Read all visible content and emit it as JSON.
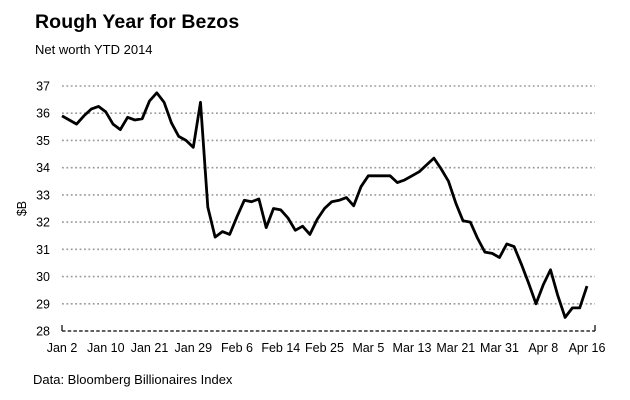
{
  "header": {
    "title": "Rough Year for Bezos",
    "subtitle": "Net worth YTD 2014"
  },
  "footer": {
    "source": "Data: Bloomberg Billionaires Index"
  },
  "chart_data": {
    "type": "line",
    "title": "Rough Year for Bezos",
    "subtitle": "Net worth YTD 2014",
    "ylabel": "$B",
    "xlabel": "",
    "source": "Data: Bloomberg Billionaires Index",
    "ylim": [
      28,
      37
    ],
    "yticks": [
      28,
      29,
      30,
      31,
      32,
      33,
      34,
      35,
      36,
      37
    ],
    "x_tick_labels": [
      "Jan 2",
      "Jan 10",
      "Jan 21",
      "Jan 29",
      "Feb 6",
      "Feb 14",
      "Feb 25",
      "Mar 5",
      "Mar 13",
      "Mar 21",
      "Mar 31",
      "Apr 8",
      "Apr 16"
    ],
    "x_tick_point_indices": [
      0,
      6,
      12,
      18,
      24,
      30,
      36,
      42,
      48,
      54,
      60,
      66,
      72
    ],
    "grid": "horizontal-dotted",
    "legend_position": "none",
    "line_color": "#000000",
    "grid_color": "#9b9b9b",
    "axis_color": "#000000",
    "series": [
      {
        "name": "Net worth ($B)",
        "values": [
          35.9,
          35.75,
          35.6,
          35.9,
          36.15,
          36.25,
          36.05,
          35.6,
          35.4,
          35.85,
          35.75,
          35.8,
          36.45,
          36.75,
          36.4,
          35.65,
          35.15,
          35.0,
          34.75,
          36.4,
          32.55,
          31.45,
          31.65,
          31.55,
          32.2,
          32.8,
          32.75,
          32.85,
          31.8,
          32.5,
          32.45,
          32.15,
          31.7,
          31.85,
          31.55,
          32.1,
          32.5,
          32.75,
          32.8,
          32.9,
          32.6,
          33.3,
          33.7,
          33.7,
          33.7,
          33.7,
          33.45,
          33.55,
          33.7,
          33.85,
          34.1,
          34.35,
          33.95,
          33.5,
          32.7,
          32.05,
          32.0,
          31.4,
          30.9,
          30.85,
          30.7,
          31.2,
          31.1,
          30.45,
          29.75,
          29.0,
          29.7,
          30.25,
          29.3,
          28.5,
          28.85,
          28.85,
          29.65
        ]
      }
    ]
  }
}
